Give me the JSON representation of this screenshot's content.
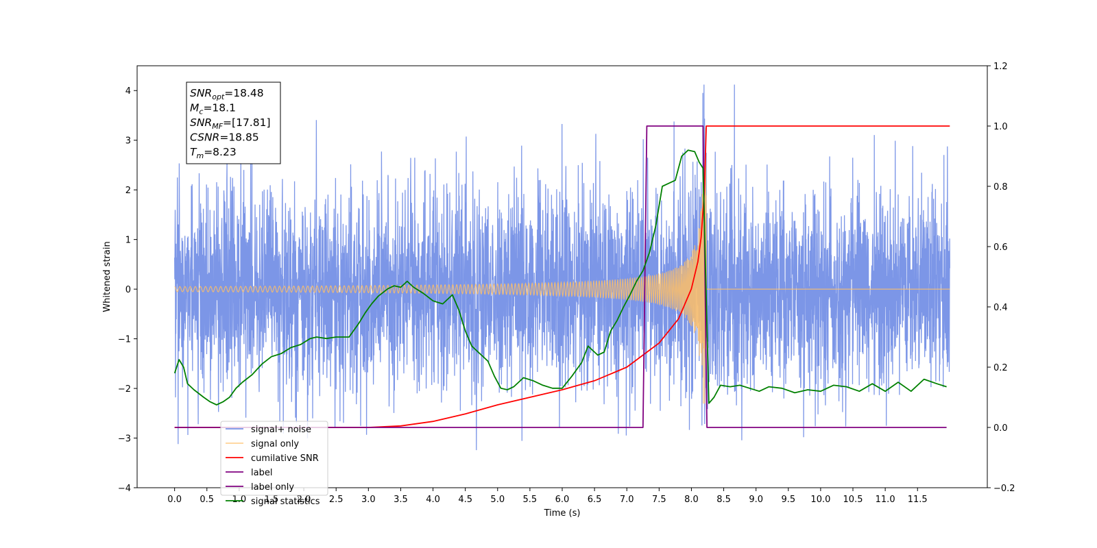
{
  "chart_data": {
    "type": "line",
    "xlabel": "Time (s)",
    "ylabel_left": "Whitened strain",
    "ylabel_right": "",
    "xlim": [
      -0.58,
      12.58
    ],
    "ylim_left": [
      -4,
      4.5
    ],
    "ylim_right": [
      -0.2,
      1.2
    ],
    "x_ticks": [
      "0.0",
      "0.5",
      "1.0",
      "1.5",
      "2.0",
      "2.5",
      "3.0",
      "3.5",
      "4.0",
      "4.5",
      "5.0",
      "5.5",
      "6.0",
      "6.5",
      "7.0",
      "7.5",
      "8.0",
      "8.5",
      "9.0",
      "9.5",
      "10.0",
      "10.5",
      "11.0",
      "11.5"
    ],
    "y_ticks_left": [
      "−4",
      "−3",
      "−2",
      "−1",
      "0",
      "1",
      "2",
      "3",
      "4"
    ],
    "y_ticks_right": [
      "−0.2",
      "0.0",
      "0.2",
      "0.4",
      "0.6",
      "0.8",
      "1.0",
      "1.2"
    ],
    "grid": false,
    "legend_position": "lower-left",
    "annotation": {
      "lines": [
        {
          "sym": "SNR",
          "sub": "opt",
          "value": "=18.48"
        },
        {
          "sym": "M",
          "sub": "c",
          "value": "=18.1"
        },
        {
          "sym": "SNR",
          "sub": "MF",
          "value": "=[17.81]"
        },
        {
          "sym": "CSNR",
          "sub": "",
          "value": "=18.85"
        },
        {
          "sym": "T",
          "sub": "m",
          "value": "=8.23"
        }
      ]
    },
    "series": [
      {
        "name": "signal+ noise",
        "color": "#7590e6",
        "axis": "left",
        "kind": "noise",
        "duration": 12.0,
        "sigma": 1.0,
        "approx_range": [
          -3.65,
          4.12
        ]
      },
      {
        "name": "signal only",
        "color": "#ffbf66",
        "axis": "left",
        "kind": "chirp",
        "start": 0.0,
        "merger": 8.23,
        "end": 12.0,
        "peak_amplitude": 3.3
      },
      {
        "name": "cumilative SNR",
        "color": "#ff0000",
        "axis": "right",
        "x": [
          0.0,
          3.0,
          3.5,
          4.0,
          4.5,
          5.0,
          5.5,
          6.0,
          6.5,
          7.0,
          7.5,
          7.8,
          8.0,
          8.1,
          8.15,
          8.2,
          8.23,
          8.3,
          12.0
        ],
        "y": [
          0.0,
          0.0,
          0.005,
          0.02,
          0.045,
          0.075,
          0.1,
          0.125,
          0.155,
          0.2,
          0.28,
          0.36,
          0.46,
          0.55,
          0.63,
          0.78,
          1.0,
          1.0,
          1.0
        ]
      },
      {
        "name": "label",
        "color": "#800080",
        "axis": "right",
        "x": [
          0.0,
          7.25,
          7.31,
          8.18,
          8.24,
          11.95
        ],
        "y": [
          0.0,
          0.0,
          1.0,
          1.0,
          0.0,
          0.0
        ]
      },
      {
        "name": "label only",
        "color": "#800080",
        "axis": "right",
        "hidden_in_plot": true,
        "x": [],
        "y": []
      },
      {
        "name": "signal statistics",
        "color": "#008000",
        "axis": "right",
        "x": [
          0.0,
          0.07,
          0.14,
          0.2,
          0.3,
          0.45,
          0.55,
          0.65,
          0.75,
          0.85,
          0.95,
          1.05,
          1.2,
          1.35,
          1.5,
          1.65,
          1.8,
          1.95,
          2.1,
          2.2,
          2.35,
          2.5,
          2.6,
          2.7,
          2.85,
          2.95,
          3.05,
          3.15,
          3.3,
          3.4,
          3.5,
          3.6,
          3.7,
          3.85,
          4.0,
          4.15,
          4.3,
          4.4,
          4.5,
          4.6,
          4.7,
          4.85,
          4.95,
          5.05,
          5.15,
          5.25,
          5.4,
          5.55,
          5.7,
          5.85,
          6.0,
          6.15,
          6.3,
          6.4,
          6.55,
          6.65,
          6.75,
          6.85,
          6.95,
          7.05,
          7.15,
          7.25,
          7.35,
          7.45,
          7.55,
          7.65,
          7.75,
          7.85,
          7.95,
          8.05,
          8.12,
          8.18,
          8.27,
          8.35,
          8.45,
          8.6,
          8.75,
          8.9,
          9.05,
          9.2,
          9.4,
          9.6,
          9.8,
          10.0,
          10.2,
          10.4,
          10.6,
          10.8,
          11.0,
          11.2,
          11.4,
          11.6,
          11.8,
          11.95
        ],
        "y": [
          0.18,
          0.225,
          0.2,
          0.145,
          0.125,
          0.1,
          0.085,
          0.075,
          0.085,
          0.1,
          0.13,
          0.15,
          0.175,
          0.21,
          0.235,
          0.245,
          0.265,
          0.275,
          0.295,
          0.3,
          0.295,
          0.3,
          0.3,
          0.3,
          0.345,
          0.38,
          0.41,
          0.435,
          0.46,
          0.47,
          0.465,
          0.485,
          0.465,
          0.445,
          0.42,
          0.41,
          0.44,
          0.39,
          0.32,
          0.27,
          0.25,
          0.22,
          0.17,
          0.13,
          0.125,
          0.135,
          0.165,
          0.155,
          0.14,
          0.13,
          0.13,
          0.17,
          0.215,
          0.27,
          0.24,
          0.25,
          0.32,
          0.355,
          0.4,
          0.44,
          0.485,
          0.52,
          0.58,
          0.67,
          0.8,
          0.81,
          0.82,
          0.9,
          0.92,
          0.915,
          0.88,
          0.86,
          0.08,
          0.1,
          0.14,
          0.135,
          0.14,
          0.13,
          0.12,
          0.135,
          0.13,
          0.115,
          0.125,
          0.12,
          0.14,
          0.135,
          0.12,
          0.145,
          0.12,
          0.15,
          0.12,
          0.16,
          0.145,
          0.135
        ]
      }
    ]
  }
}
